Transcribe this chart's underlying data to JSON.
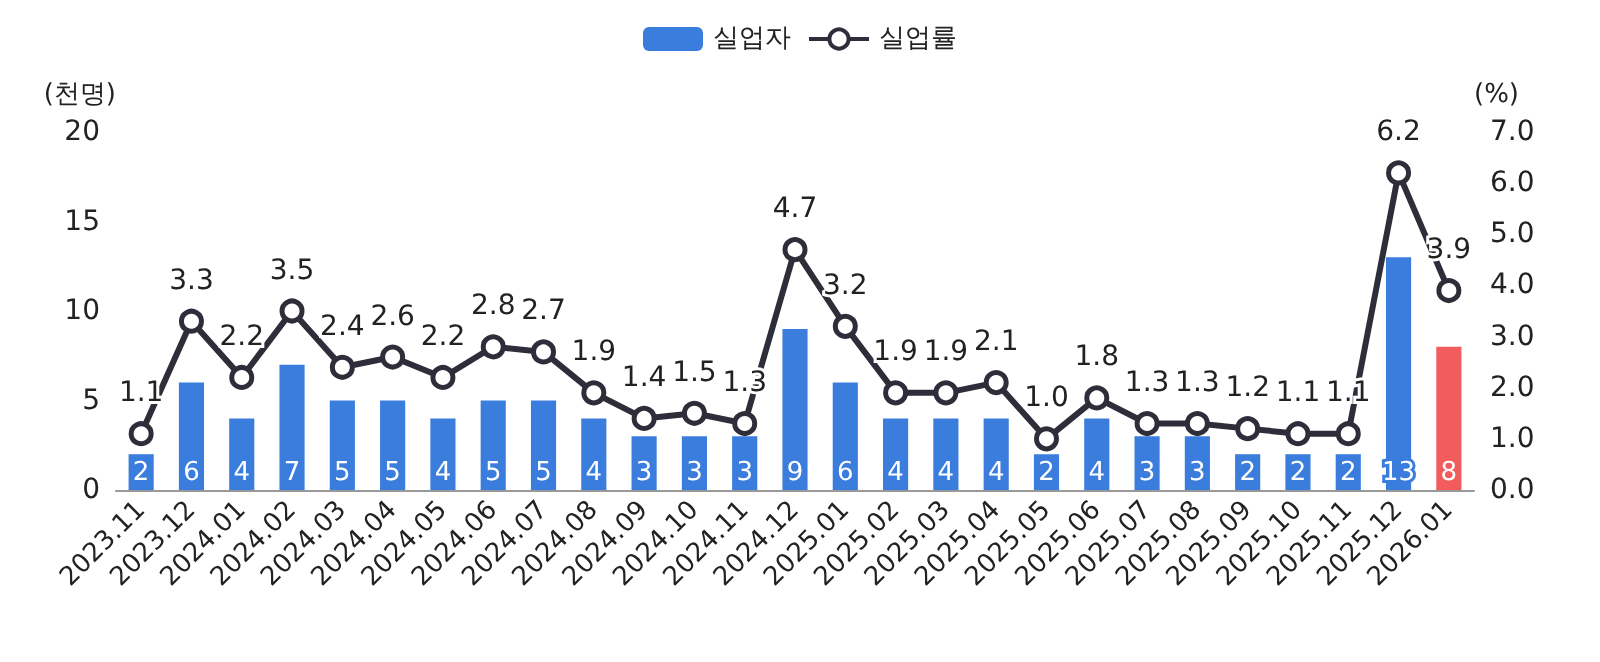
{
  "chart_data": {
    "type": "bar",
    "ylabel": "(천명)",
    "y2label": "(%)",
    "categories": [
      "2023.11",
      "2023.12",
      "2024.01",
      "2024.02",
      "2024.03",
      "2024.04",
      "2024.05",
      "2024.06",
      "2024.07",
      "2024.08",
      "2024.09",
      "2024.10",
      "2024.11",
      "2024.12",
      "2025.01",
      "2025.02",
      "2025.03",
      "2025.04",
      "2025.05",
      "2025.06",
      "2025.07",
      "2025.08",
      "2025.09",
      "2025.10",
      "2025.11",
      "2025.12",
      "2026.01"
    ],
    "series": [
      {
        "name": "실업자",
        "color": "#3b7ddd",
        "colors": [
          "#3b7ddd",
          "#3b7ddd",
          "#3b7ddd",
          "#3b7ddd",
          "#3b7ddd",
          "#3b7ddd",
          "#3b7ddd",
          "#3b7ddd",
          "#3b7ddd",
          "#3b7ddd",
          "#3b7ddd",
          "#3b7ddd",
          "#3b7ddd",
          "#3b7ddd",
          "#3b7ddd",
          "#3b7ddd",
          "#3b7ddd",
          "#3b7ddd",
          "#3b7ddd",
          "#3b7ddd",
          "#3b7ddd",
          "#3b7ddd",
          "#3b7ddd",
          "#3b7ddd",
          "#3b7ddd",
          "#3b7ddd",
          "#f25c5c"
        ],
        "values": [
          2,
          6,
          4,
          7,
          5,
          5,
          4,
          5,
          5,
          4,
          3,
          3,
          3,
          9,
          6,
          4,
          4,
          4,
          2,
          4,
          3,
          3,
          2,
          2,
          2,
          13,
          8
        ],
        "value_labels": [
          "2",
          "6",
          "4",
          "7",
          "5",
          "5",
          "4",
          "5",
          "5",
          "4",
          "3",
          "3",
          "3",
          "9",
          "6",
          "4",
          "4",
          "4",
          "2",
          "4",
          "3",
          "3",
          "2",
          "2",
          "2",
          "13",
          "8"
        ]
      },
      {
        "name": "실업률",
        "type": "line",
        "axis": "y2",
        "color": "#2e2e3a",
        "values": [
          1.1,
          3.3,
          2.2,
          3.5,
          2.4,
          2.6,
          2.2,
          2.8,
          2.7,
          1.9,
          1.4,
          1.5,
          1.3,
          4.7,
          3.2,
          1.9,
          1.9,
          2.1,
          1.0,
          1.8,
          1.3,
          1.3,
          1.2,
          1.1,
          1.1,
          6.2,
          3.9
        ],
        "value_labels": [
          "1.1",
          "3.3",
          "2.2",
          "3.5",
          "2.4",
          "2.6",
          "2.2",
          "2.8",
          "2.7",
          "1.9",
          "1.4",
          "1.5",
          "1.3",
          "4.7",
          "3.2",
          "1.9",
          "1.9",
          "2.1",
          "1.0",
          "1.8",
          "1.3",
          "1.3",
          "1.2",
          "1.1",
          "1.1",
          "6.2",
          "3.9"
        ]
      }
    ],
    "ylim": [
      0,
      20
    ],
    "yticks": [
      0,
      5,
      10,
      15,
      20
    ],
    "y2lim": [
      0,
      7
    ],
    "y2ticks": [
      {
        "value": 0,
        "label": "0.0"
      },
      {
        "value": 1,
        "label": "1.0"
      },
      {
        "value": 2,
        "label": "2.0"
      },
      {
        "value": 3,
        "label": "3.0"
      },
      {
        "value": 4,
        "label": "4.0"
      },
      {
        "value": 5,
        "label": "5.0"
      },
      {
        "value": 6,
        "label": "6.0"
      },
      {
        "value": 7,
        "label": "7.0"
      }
    ],
    "grid": false,
    "legend": "top",
    "marker": "circle",
    "line_style": "solid"
  }
}
